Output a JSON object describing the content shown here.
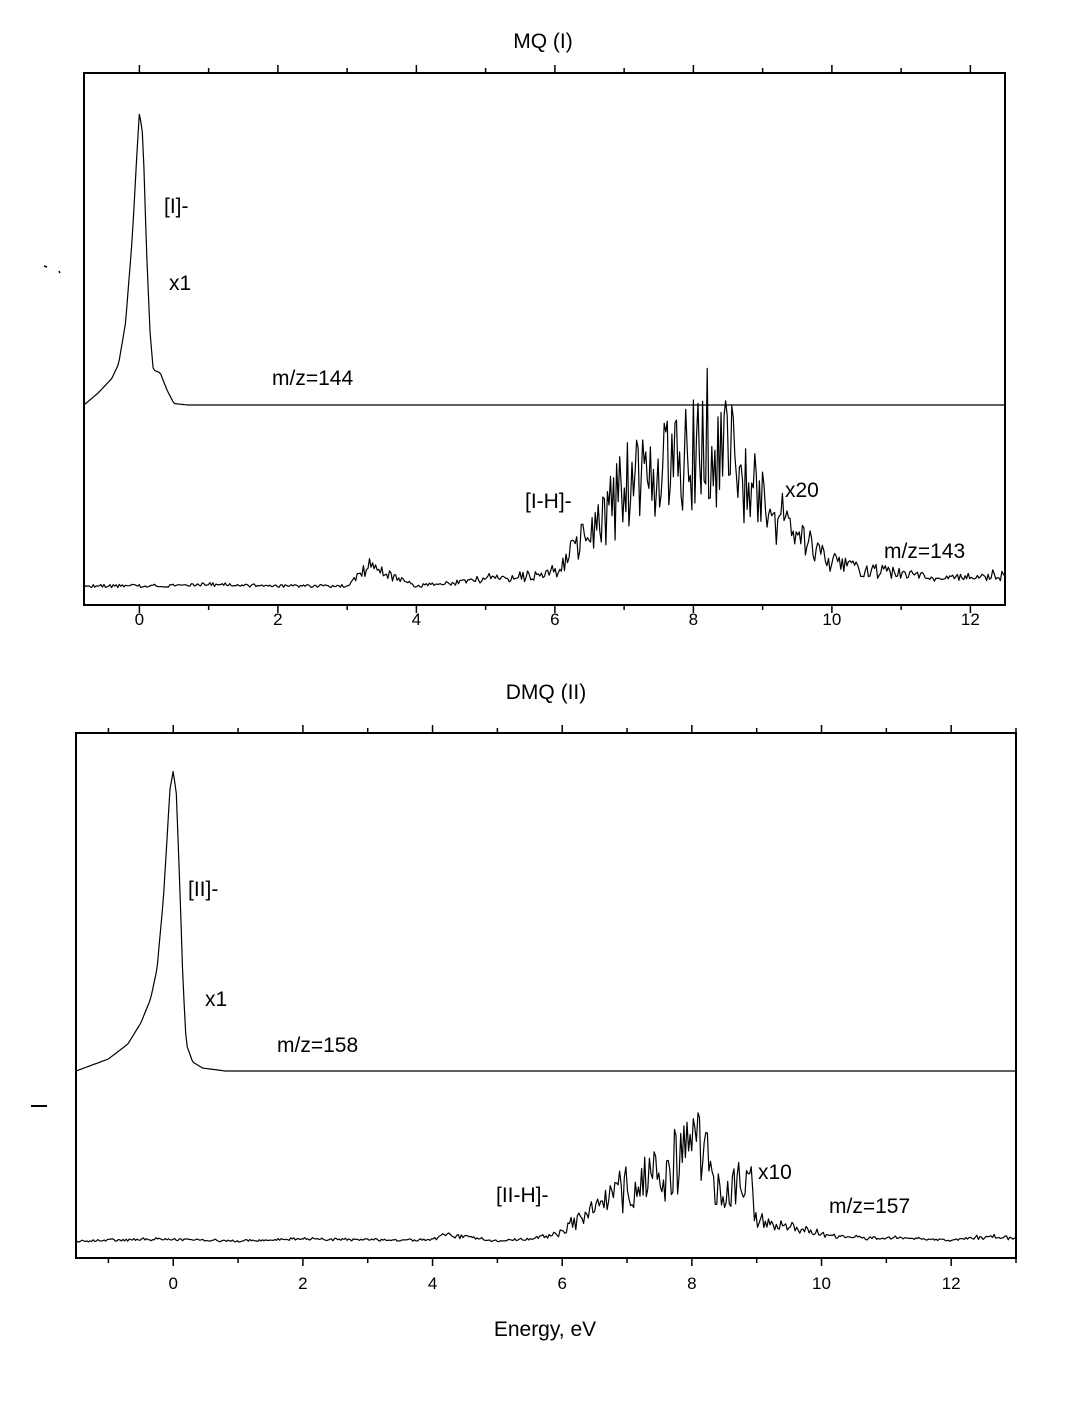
{
  "chart_data": [
    {
      "type": "line",
      "title": "MQ (I)",
      "xlabel": "",
      "ylabel": "",
      "xlim": [
        -0.8,
        12.5
      ],
      "xticks": [
        0,
        2,
        4,
        6,
        8,
        10,
        12
      ],
      "xtick_labels": [
        "0",
        "2",
        "4",
        "6",
        "8",
        "10",
        "12"
      ],
      "grid": false,
      "series": [
        {
          "name": "[I]-",
          "mass_label": "m/z=144",
          "scale_label": "x1",
          "x": [
            -0.8,
            -0.6,
            -0.4,
            -0.3,
            -0.2,
            -0.1,
            -0.05,
            0.0,
            0.05,
            0.1,
            0.15,
            0.2,
            0.3,
            0.4,
            0.5,
            0.7,
            1.0,
            1.7,
            12.5
          ],
          "y": [
            0.0,
            0.04,
            0.09,
            0.14,
            0.28,
            0.58,
            0.8,
            1.0,
            0.92,
            0.55,
            0.26,
            0.12,
            0.11,
            0.05,
            0.005,
            0.0,
            0.0,
            0.0,
            0.0
          ]
        },
        {
          "name": "[I-H]-",
          "mass_label": "m/z=143",
          "scale_label": "x20",
          "x": [
            -0.8,
            0,
            1,
            2,
            3,
            3.3,
            4,
            4.5,
            5,
            5.5,
            6,
            6.3,
            6.6,
            7,
            7.5,
            8,
            8.1,
            8.5,
            9,
            9.5,
            10,
            10.5,
            11,
            11.5,
            12,
            12.5
          ],
          "y": [
            0.0,
            0.0,
            0.01,
            0.0,
            0.0,
            0.12,
            0.0,
            0.02,
            0.05,
            0.06,
            0.1,
            0.22,
            0.38,
            0.6,
            0.75,
            0.85,
            0.98,
            0.85,
            0.5,
            0.32,
            0.15,
            0.1,
            0.08,
            0.05,
            0.06,
            0.07
          ]
        }
      ]
    },
    {
      "type": "line",
      "title": "DMQ (II)",
      "xlabel": "Energy, eV",
      "ylabel": "",
      "xlim": [
        -1.5,
        13.0
      ],
      "xticks": [
        0,
        2,
        4,
        6,
        8,
        10,
        12
      ],
      "xtick_labels": [
        "0",
        "2",
        "4",
        "6",
        "8",
        "10",
        "12"
      ],
      "grid": false,
      "series": [
        {
          "name": "[II]-",
          "mass_label": "m/z=158",
          "scale_label": "x1",
          "x": [
            -1.5,
            -1.0,
            -0.7,
            -0.5,
            -0.35,
            -0.25,
            -0.15,
            -0.05,
            0.0,
            0.05,
            0.1,
            0.15,
            0.2,
            0.3,
            0.45,
            0.8,
            13.0
          ],
          "y": [
            0.0,
            0.04,
            0.09,
            0.16,
            0.24,
            0.34,
            0.58,
            0.94,
            1.0,
            0.92,
            0.62,
            0.3,
            0.09,
            0.03,
            0.01,
            0.0,
            0.0
          ]
        },
        {
          "name": "[II-H]-",
          "mass_label": "m/z=157",
          "scale_label": "x10",
          "x": [
            -1.5,
            0,
            1,
            2,
            3,
            4,
            4.2,
            5,
            5.5,
            6,
            6.3,
            6.6,
            7,
            7.5,
            8,
            8.5,
            8.9,
            9.0,
            9.5,
            10,
            10.5,
            11,
            11.5,
            12,
            12.6,
            13
          ],
          "y": [
            0.0,
            0.02,
            0.0,
            0.02,
            0.01,
            0.01,
            0.06,
            0.0,
            0.02,
            0.08,
            0.22,
            0.3,
            0.5,
            0.58,
            0.88,
            0.5,
            0.55,
            0.18,
            0.14,
            0.06,
            0.03,
            0.03,
            0.02,
            0.01,
            0.04,
            0.02
          ]
        }
      ]
    }
  ]
}
